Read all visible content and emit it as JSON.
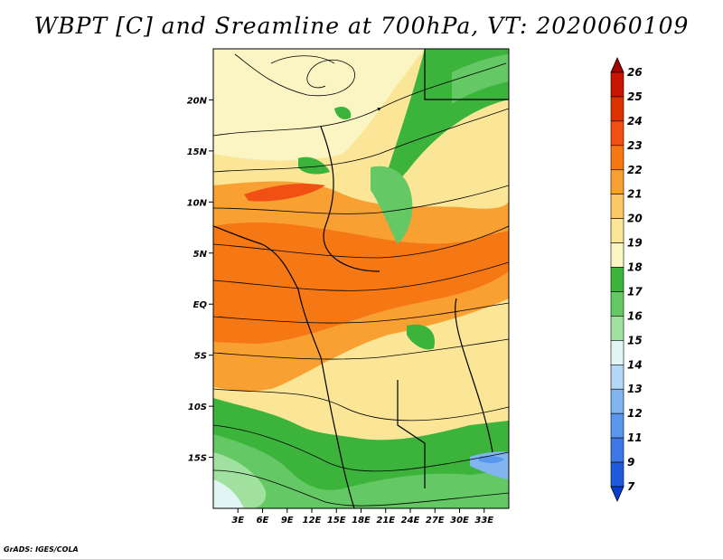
{
  "title": "WBPT [C] and Sreamline at 700hPa, VT: 2020060109",
  "credit": "GrADS: IGES/COLA",
  "map": {
    "lon_range": [
      0,
      36
    ],
    "lat_range": [
      -20,
      25
    ],
    "lon_ticks": [
      {
        "label": "3E",
        "lon": 3
      },
      {
        "label": "6E",
        "lon": 6
      },
      {
        "label": "9E",
        "lon": 9
      },
      {
        "label": "12E",
        "lon": 12
      },
      {
        "label": "15E",
        "lon": 15
      },
      {
        "label": "18E",
        "lon": 18
      },
      {
        "label": "21E",
        "lon": 21
      },
      {
        "label": "24E",
        "lon": 24
      },
      {
        "label": "27E",
        "lon": 27
      },
      {
        "label": "30E",
        "lon": 30
      },
      {
        "label": "33E",
        "lon": 33
      }
    ],
    "lat_ticks": [
      {
        "label": "20N",
        "lat": 20
      },
      {
        "label": "15N",
        "lat": 15
      },
      {
        "label": "10N",
        "lat": 10
      },
      {
        "label": "5N",
        "lat": 5
      },
      {
        "label": "EQ",
        "lat": 0
      },
      {
        "label": "5S",
        "lat": -5
      },
      {
        "label": "10S",
        "lat": -10
      },
      {
        "label": "15S",
        "lat": -15
      }
    ]
  },
  "colorbar": {
    "labels": [
      "26",
      "25",
      "24",
      "23",
      "22",
      "21",
      "20",
      "19",
      "18",
      "17",
      "16",
      "15",
      "14",
      "13",
      "12",
      "11",
      "9",
      "7"
    ],
    "colors": [
      "#a50000",
      "#c81400",
      "#dc3200",
      "#f05014",
      "#f57814",
      "#f8a032",
      "#fac864",
      "#fae696",
      "#faf5c3",
      "#3cb43c",
      "#64c864",
      "#a0e1a0",
      "#e1f5f5",
      "#b4d7f5",
      "#82b4f0",
      "#5a96eb",
      "#3c78e6",
      "#1e5adc",
      "#0a3cd2"
    ]
  }
}
